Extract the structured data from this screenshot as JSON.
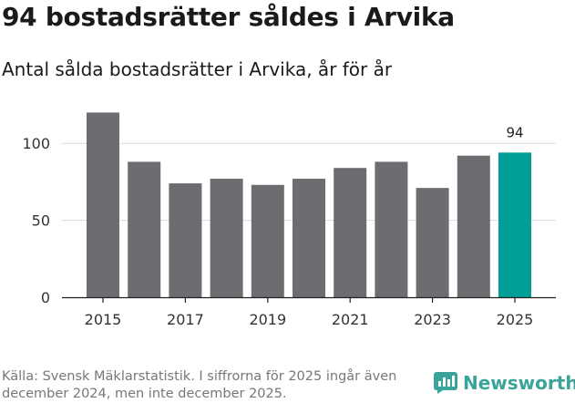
{
  "title": "94 bostadsrätter såldes i Arvika",
  "subtitle": "Antal sålda bostadsrätter i Arvika, år för år",
  "source": "Källa: Svensk Mäklarstatistik. I siffrorna för 2025 ingår även december 2024, men inte december 2025.",
  "brand": {
    "name": "Newsworthy",
    "icon": "newsworthy-logo-icon"
  },
  "colors": {
    "bar": "#6d6c70",
    "highlight": "#009e96",
    "grid": "#dcdcdc",
    "axis": "#222222",
    "brand": "#3aa39a"
  },
  "chart_data": {
    "type": "bar",
    "title": "94 bostadsrätter såldes i Arvika",
    "xlabel": "",
    "ylabel": "",
    "categories": [
      "2015",
      "2016",
      "2017",
      "2018",
      "2019",
      "2020",
      "2021",
      "2022",
      "2023",
      "2024",
      "2025"
    ],
    "values": [
      120,
      88,
      74,
      77,
      73,
      77,
      84,
      88,
      71,
      92,
      94
    ],
    "x_tick_labels": [
      "2015",
      "2017",
      "2019",
      "2021",
      "2023",
      "2025"
    ],
    "y_ticks": [
      0,
      50,
      100
    ],
    "ylim": [
      0,
      125
    ],
    "highlight_category": "2025",
    "data_labels": [
      {
        "category": "2025",
        "text": "94"
      }
    ],
    "grid": "horizontal"
  }
}
